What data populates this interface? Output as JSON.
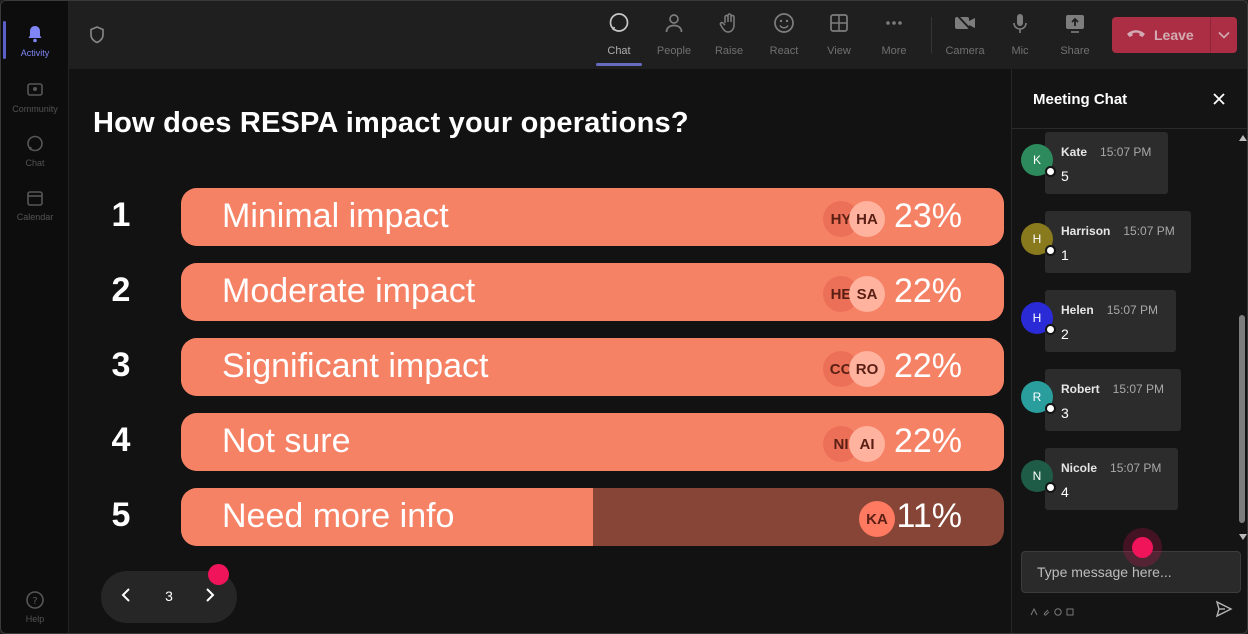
{
  "rail": {
    "items": [
      {
        "label": "Activity",
        "icon": "bell-icon",
        "active": true
      },
      {
        "label": "Community",
        "icon": "community-icon"
      },
      {
        "label": "Chat",
        "icon": "chat-icon"
      },
      {
        "label": "Calendar",
        "icon": "calendar-icon"
      },
      {
        "label": "Help",
        "icon": "help-icon"
      }
    ]
  },
  "toolbar": {
    "buttons": [
      {
        "label": "Chat",
        "icon": "chat-icon",
        "active": true
      },
      {
        "label": "People",
        "icon": "people-icon"
      },
      {
        "label": "Raise",
        "icon": "hand-icon"
      },
      {
        "label": "React",
        "icon": "smile-icon"
      },
      {
        "label": "View",
        "icon": "grid-icon"
      },
      {
        "label": "More",
        "icon": "more-icon"
      },
      {
        "label": "Camera",
        "icon": "camera-off-icon"
      },
      {
        "label": "Mic",
        "icon": "mic-icon"
      },
      {
        "label": "Share",
        "icon": "share-icon"
      }
    ],
    "leave_label": "Leave"
  },
  "poll": {
    "question": "How does RESPA impact your operations?",
    "options": [
      {
        "num": "1",
        "label": "Minimal impact",
        "percent": "23%",
        "fill": 1.0,
        "chips": [
          "HY",
          "HA"
        ]
      },
      {
        "num": "2",
        "label": "Moderate impact",
        "percent": "22%",
        "fill": 1.0,
        "chips": [
          "HE",
          "SA"
        ]
      },
      {
        "num": "3",
        "label": "Significant impact",
        "percent": "22%",
        "fill": 1.0,
        "chips": [
          "CO",
          "RO"
        ]
      },
      {
        "num": "4",
        "label": "Not sure",
        "percent": "22%",
        "fill": 1.0,
        "chips": [
          "NI",
          "AI"
        ]
      },
      {
        "num": "5",
        "label": "Need more info",
        "percent": "11%",
        "fill": 0.5,
        "chips": [
          "KA"
        ]
      }
    ],
    "page": "3"
  },
  "chat": {
    "title": "Meeting Chat",
    "messages": [
      {
        "initial": "K",
        "name": "Kate",
        "time": "15:07 PM",
        "text": "5",
        "color": "#2d8a5c"
      },
      {
        "initial": "H",
        "name": "Harrison",
        "time": "15:07 PM",
        "text": "1",
        "color": "#8a7a1e"
      },
      {
        "initial": "H",
        "name": "Helen",
        "time": "15:07 PM",
        "text": "2",
        "color": "#2a2ad6"
      },
      {
        "initial": "R",
        "name": "Robert",
        "time": "15:07 PM",
        "text": "3",
        "color": "#2a9d9d"
      },
      {
        "initial": "N",
        "name": "Nicole",
        "time": "15:07 PM",
        "text": "4",
        "color": "#1e5c47"
      }
    ],
    "compose_placeholder": "Type message here..."
  }
}
